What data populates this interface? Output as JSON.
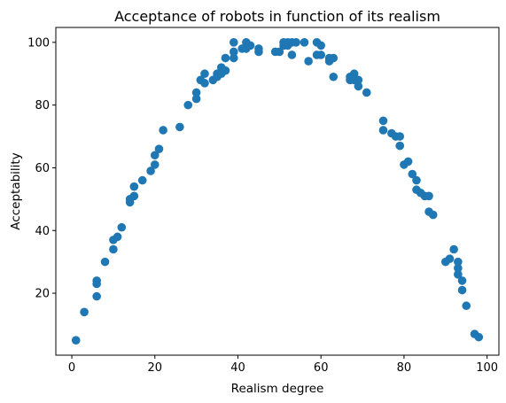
{
  "chart_data": {
    "type": "scatter",
    "title": "Acceptance of robots in function of its realism",
    "xlabel": "Realism degree",
    "ylabel": "Acceptability",
    "xlim": [
      -3.85,
      102.85
    ],
    "ylim": [
      0.25,
      104.75
    ],
    "xticks": [
      0,
      20,
      40,
      60,
      80,
      100
    ],
    "yticks": [
      20,
      40,
      60,
      80,
      100
    ],
    "grid": false,
    "marker_color": "#1f77b4",
    "series": [
      {
        "points": [
          [
            1,
            5
          ],
          [
            3,
            14
          ],
          [
            6,
            19
          ],
          [
            6,
            23
          ],
          [
            6,
            24
          ],
          [
            8,
            30
          ],
          [
            10,
            34
          ],
          [
            10,
            37
          ],
          [
            11,
            38
          ],
          [
            12,
            41
          ],
          [
            14,
            49
          ],
          [
            14,
            50
          ],
          [
            15,
            51
          ],
          [
            15,
            54
          ],
          [
            17,
            56
          ],
          [
            19,
            59
          ],
          [
            20,
            61
          ],
          [
            20,
            64
          ],
          [
            21,
            66
          ],
          [
            22,
            72
          ],
          [
            26,
            73
          ],
          [
            28,
            80
          ],
          [
            30,
            82
          ],
          [
            30,
            84
          ],
          [
            31,
            88
          ],
          [
            32,
            87
          ],
          [
            32,
            90
          ],
          [
            34,
            88
          ],
          [
            35,
            89
          ],
          [
            35,
            90
          ],
          [
            36,
            90
          ],
          [
            36,
            92
          ],
          [
            37,
            91
          ],
          [
            37,
            95
          ],
          [
            39,
            95
          ],
          [
            39,
            97
          ],
          [
            39,
            100
          ],
          [
            41,
            98
          ],
          [
            42,
            98
          ],
          [
            42,
            100
          ],
          [
            43,
            99
          ],
          [
            45,
            97
          ],
          [
            45,
            98
          ],
          [
            49,
            97
          ],
          [
            50,
            97
          ],
          [
            51,
            99
          ],
          [
            51,
            100
          ],
          [
            52,
            99
          ],
          [
            52,
            100
          ],
          [
            53,
            96
          ],
          [
            53,
            100
          ],
          [
            54,
            100
          ],
          [
            56,
            100
          ],
          [
            57,
            94
          ],
          [
            59,
            96
          ],
          [
            59,
            100
          ],
          [
            60,
            96
          ],
          [
            60,
            99
          ],
          [
            62,
            94
          ],
          [
            62,
            95
          ],
          [
            63,
            95
          ],
          [
            63,
            89
          ],
          [
            67,
            88
          ],
          [
            67,
            89
          ],
          [
            68,
            88
          ],
          [
            68,
            90
          ],
          [
            69,
            86
          ],
          [
            69,
            88
          ],
          [
            71,
            84
          ],
          [
            75,
            72
          ],
          [
            75,
            75
          ],
          [
            77,
            71
          ],
          [
            78,
            70
          ],
          [
            79,
            67
          ],
          [
            79,
            70
          ],
          [
            80,
            61
          ],
          [
            81,
            62
          ],
          [
            82,
            58
          ],
          [
            83,
            53
          ],
          [
            83,
            56
          ],
          [
            84,
            52
          ],
          [
            85,
            51
          ],
          [
            86,
            46
          ],
          [
            86,
            51
          ],
          [
            87,
            45
          ],
          [
            90,
            30
          ],
          [
            91,
            31
          ],
          [
            92,
            34
          ],
          [
            93,
            26
          ],
          [
            93,
            28
          ],
          [
            93,
            30
          ],
          [
            94,
            21
          ],
          [
            94,
            24
          ],
          [
            95,
            16
          ],
          [
            97,
            7
          ],
          [
            98,
            6
          ]
        ]
      }
    ]
  }
}
